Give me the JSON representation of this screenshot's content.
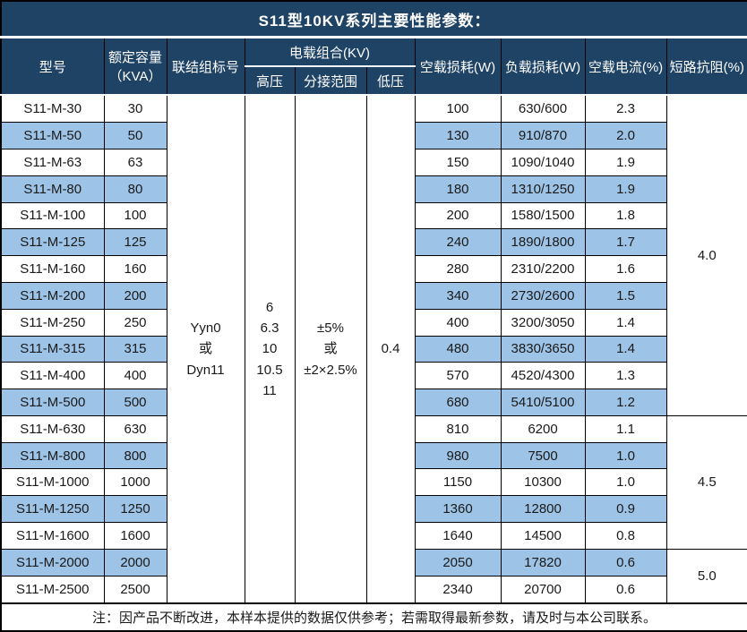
{
  "title": "S11型10KV系列主要性能参数：",
  "colors": {
    "header_bg": "#1F4365",
    "header_text": "#FFFFFF",
    "stripe_bg": "#9DC3E6",
    "grid_line": "#000000",
    "body_text": "#1A1A1A"
  },
  "table": {
    "headers": {
      "model": "型号",
      "capacity": "额定容量\n（KVA）",
      "connection": "联结组标号",
      "voltage_group": "电载组合(KV)",
      "high_voltage": "高压",
      "tap_range": "分接范围",
      "low_voltage": "低压",
      "no_load_loss": "空载损耗(W)",
      "load_loss": "负载损耗(W)",
      "no_load_current": "空载电流(%)",
      "impedance": "短路抗阻(%)"
    },
    "merged": {
      "connection": [
        "Yyn0",
        "或",
        "Dyn11"
      ],
      "high_voltage": [
        "6",
        "6.3",
        "10",
        "10.5",
        "11"
      ],
      "tap_range": [
        "±5%",
        "或",
        "±2×2.5%"
      ],
      "low_voltage": "0.4"
    },
    "impedance_groups": [
      {
        "value": "4.0",
        "row_span": 12
      },
      {
        "value": "4.5",
        "row_span": 5
      },
      {
        "value": "5.0",
        "row_span": 2
      }
    ],
    "rows": [
      [
        "S11-M-30",
        "30",
        "100",
        "630/600",
        "2.3"
      ],
      [
        "S11-M-50",
        "50",
        "130",
        "910/870",
        "2.0"
      ],
      [
        "S11-M-63",
        "63",
        "150",
        "1090/1040",
        "1.9"
      ],
      [
        "S11-M-80",
        "80",
        "180",
        "1310/1250",
        "1.9"
      ],
      [
        "S11-M-100",
        "100",
        "200",
        "1580/1500",
        "1.8"
      ],
      [
        "S11-M-125",
        "125",
        "240",
        "1890/1800",
        "1.7"
      ],
      [
        "S11-M-160",
        "160",
        "280",
        "2310/2200",
        "1.6"
      ],
      [
        "S11-M-200",
        "200",
        "340",
        "2730/2600",
        "1.5"
      ],
      [
        "S11-M-250",
        "250",
        "400",
        "3200/3050",
        "1.4"
      ],
      [
        "S11-M-315",
        "315",
        "480",
        "3830/3650",
        "1.4"
      ],
      [
        "S11-M-400",
        "400",
        "570",
        "4520/4300",
        "1.3"
      ],
      [
        "S11-M-500",
        "500",
        "680",
        "5410/5100",
        "1.2"
      ],
      [
        "S11-M-630",
        "630",
        "810",
        "6200",
        "1.1"
      ],
      [
        "S11-M-800",
        "800",
        "980",
        "7500",
        "1.0"
      ],
      [
        "S11-M-1000",
        "1000",
        "1150",
        "10300",
        "1.0"
      ],
      [
        "S11-M-1250",
        "1250",
        "1360",
        "12800",
        "0.9"
      ],
      [
        "S11-M-1600",
        "1600",
        "1640",
        "14500",
        "0.8"
      ],
      [
        "S11-M-2000",
        "2000",
        "2050",
        "17820",
        "0.6"
      ],
      [
        "S11-M-2500",
        "2500",
        "2340",
        "20700",
        "0.6"
      ]
    ]
  },
  "note": "注：因产品不断改进，本样本提供的数据仅供参考；若需取得最新参数，请及时与本公司联系。"
}
